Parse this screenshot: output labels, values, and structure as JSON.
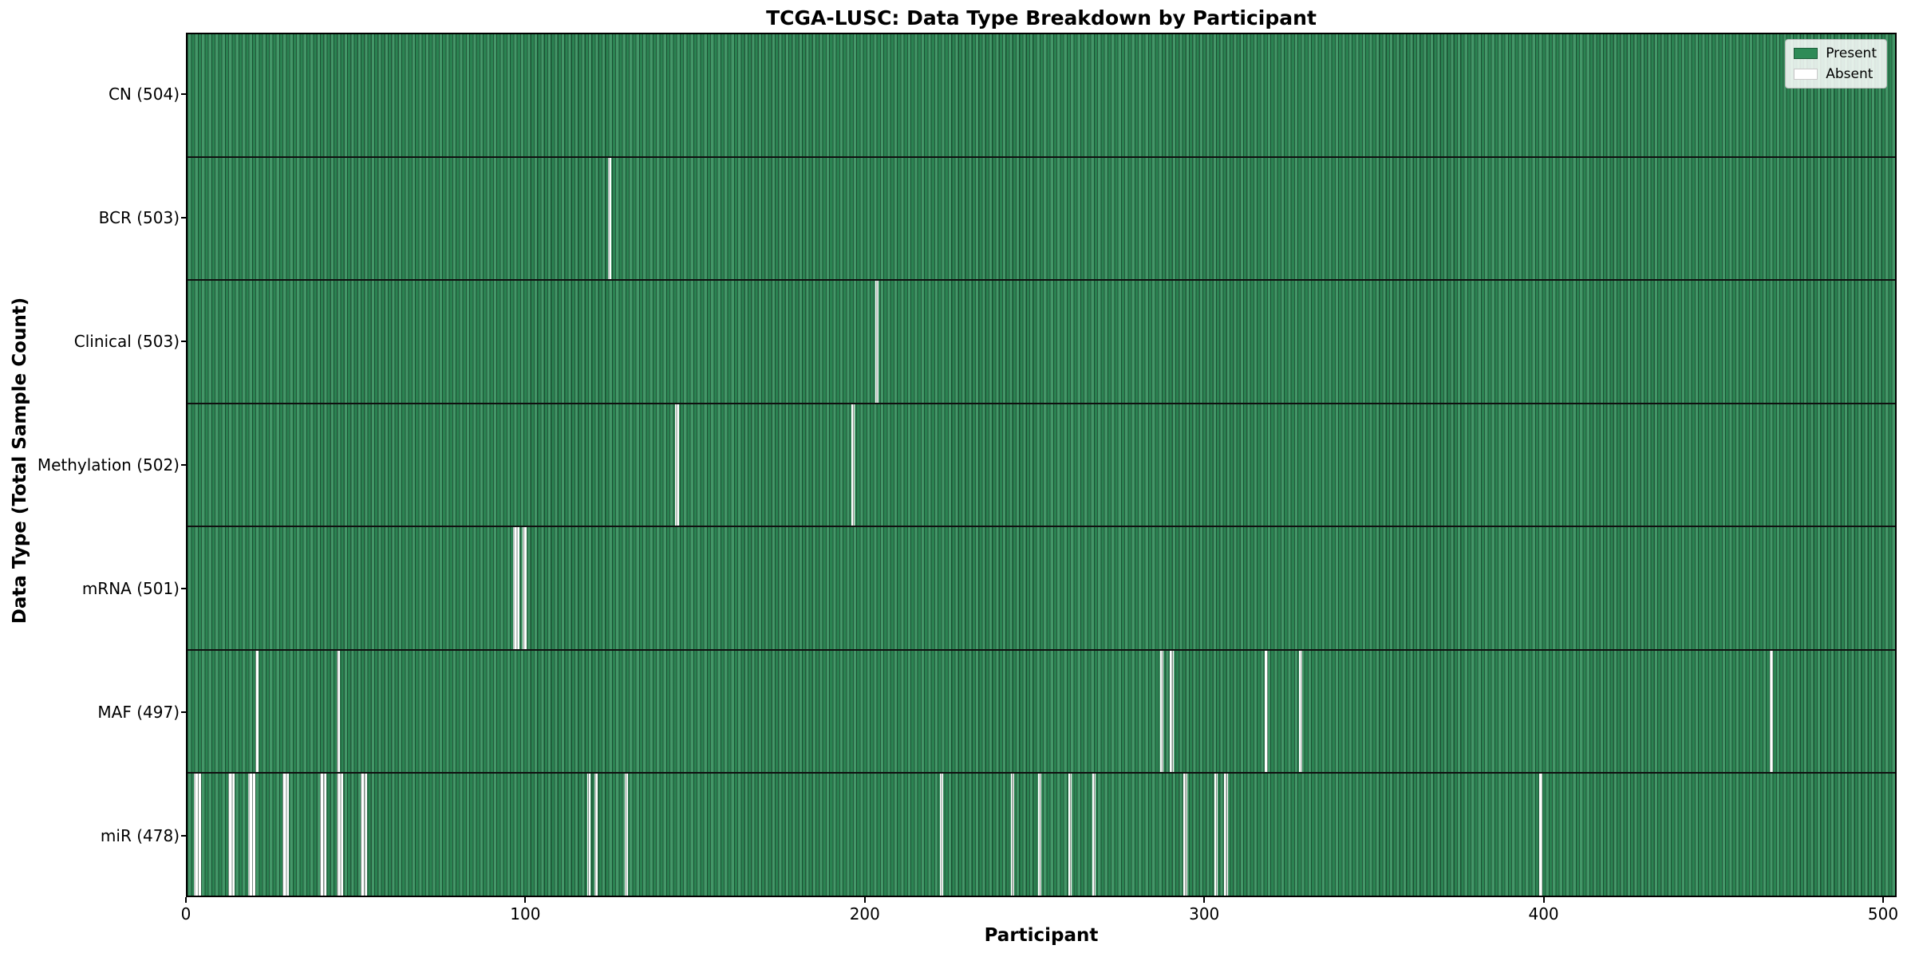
{
  "title": "TCGA-LUSC: Data Type Breakdown by Participant",
  "xlabel": "Participant",
  "ylabel": "Data Type (Total Sample Count)",
  "legend": {
    "present_label": "Present",
    "absent_label": "Absent",
    "position": "upper right"
  },
  "colors": {
    "present": "#2e8b57",
    "absent": "#ffffff",
    "cell_edge": "#1d5c39",
    "spine": "#000000"
  },
  "chart_data": {
    "type": "heatmap",
    "title": "TCGA-LUSC: Data Type Breakdown by Participant",
    "xlabel": "Participant",
    "ylabel": "Data Type (Total Sample Count)",
    "legend": [
      "Present",
      "Absent"
    ],
    "legend_position": "upper right",
    "grid": false,
    "n_participants": 504,
    "xlim": [
      0,
      504
    ],
    "x_ticks": [
      0,
      100,
      200,
      300,
      400,
      500
    ],
    "rows": [
      {
        "name": "CN",
        "label": "CN (504)",
        "total": 504,
        "absent_participants": []
      },
      {
        "name": "BCR",
        "label": "BCR (503)",
        "total": 503,
        "absent_participants": [
          124
        ]
      },
      {
        "name": "Clinical",
        "label": "Clinical (503)",
        "total": 503,
        "absent_participants": [
          203
        ]
      },
      {
        "name": "Methylation",
        "label": "Methylation (502)",
        "total": 502,
        "absent_participants": [
          144,
          196
        ]
      },
      {
        "name": "mRNA",
        "label": "mRNA (501)",
        "total": 501,
        "absent_participants": [
          96,
          97,
          99
        ]
      },
      {
        "name": "MAF",
        "label": "MAF (497)",
        "total": 497,
        "absent_participants": [
          20,
          44,
          287,
          290,
          318,
          328,
          467
        ]
      },
      {
        "name": "miR",
        "label": "miR (478)",
        "total": 478,
        "absent_participants": [
          2,
          3,
          12,
          13,
          18,
          19,
          28,
          29,
          39,
          40,
          44,
          45,
          51,
          52,
          118,
          120,
          129,
          222,
          243,
          251,
          260,
          267,
          294,
          303,
          306,
          399
        ]
      }
    ]
  }
}
